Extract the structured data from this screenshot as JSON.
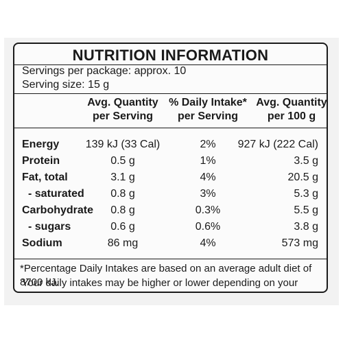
{
  "panel": {
    "title": "NUTRITION INFORMATION",
    "servings_per_package": "Servings per package: approx. 10",
    "serving_size": "Serving size: 15 g"
  },
  "columns": [
    {
      "line1": "Avg. Quantity",
      "line2": "per Serving"
    },
    {
      "line1": "% Daily Intake*",
      "line2": "per Serving"
    },
    {
      "line1": "Avg. Quantity",
      "line2": "per 100 g"
    }
  ],
  "rows": [
    {
      "name": "Energy",
      "per_serving": "139 kJ (33 Cal)",
      "daily_intake": "2%",
      "per_100g": "927 kJ (222 Cal)"
    },
    {
      "name": "Protein",
      "per_serving": "0.5 g",
      "daily_intake": "1%",
      "per_100g": "3.5 g"
    },
    {
      "name": "Fat, total",
      "per_serving": "3.1 g",
      "daily_intake": "4%",
      "per_100g": "20.5 g"
    },
    {
      "name": "- saturated",
      "per_serving": "0.8 g",
      "daily_intake": "3%",
      "per_100g": "5.3 g"
    },
    {
      "name": "Carbohydrate",
      "per_serving": "0.8 g",
      "daily_intake": "0.3%",
      "per_100g": "5.5 g"
    },
    {
      "name": "- sugars",
      "per_serving": "0.6 g",
      "daily_intake": "0.6%",
      "per_100g": "3.8 g"
    },
    {
      "name": "Sodium",
      "per_serving": "86 mg",
      "daily_intake": "4%",
      "per_100g": "573 mg"
    }
  ],
  "footnote": {
    "line1": "*Percentage Daily Intakes are based on an average adult diet of 8700 kJ.",
    "line2": "Your daily intakes may be higher or lower depending on your energy needs."
  }
}
